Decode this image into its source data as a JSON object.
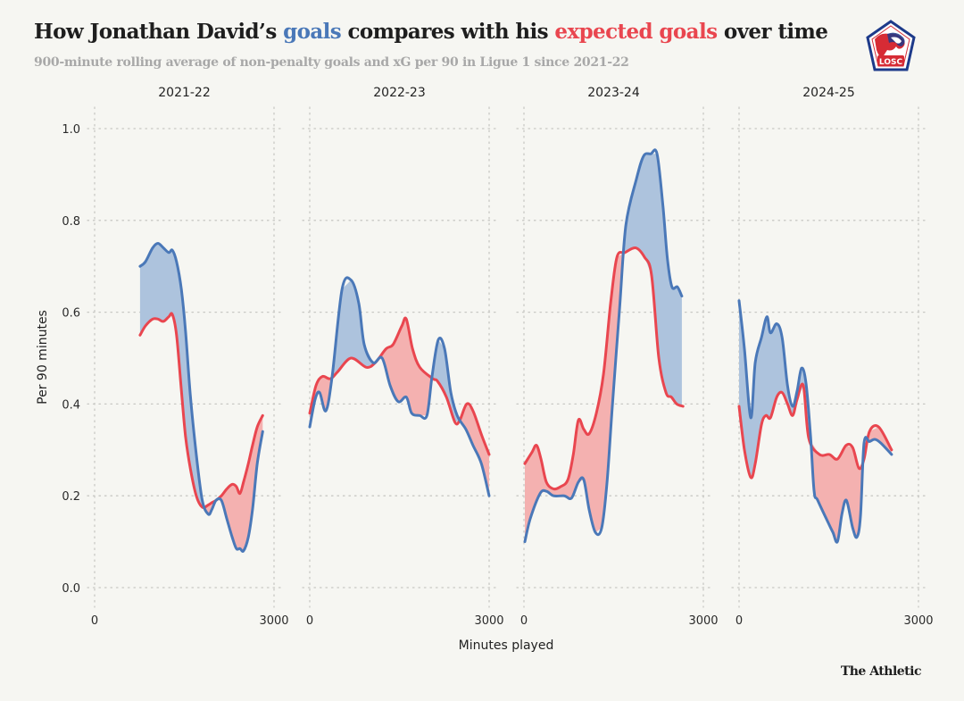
{
  "header": {
    "title_part1": "How Jonathan David’s ",
    "title_goals": "goals",
    "title_part2": " compares with his ",
    "title_xg": "expected goals",
    "title_part3": " over time",
    "subtitle": "900-minute rolling average of non-penalty goals and xG per 90 in Ligue 1 since 2021-22",
    "logo_text": "LOSC",
    "logo_icon": "losc-club-crest-icon"
  },
  "footer": {
    "brand": "The Athletic"
  },
  "colors": {
    "goals": "#4a78b8",
    "xg": "#e9464f",
    "goals_fill": "#adc3dd",
    "xg_fill": "#f4b1b0",
    "grid": "#c8c8c4",
    "background": "#f6f6f2"
  },
  "chart_data": {
    "type": "line",
    "title": "How Jonathan David’s goals compares with his expected goals over time",
    "subtitle": "900-minute rolling average of non-penalty goals and xG per 90 in Ligue 1 since 2021-22",
    "xlabel": "Minutes played",
    "ylabel": "Per 90 minutes",
    "ylim": [
      0,
      1.0
    ],
    "xlim": [
      0,
      3000
    ],
    "yticks": [
      0.0,
      0.2,
      0.4,
      0.6,
      0.8,
      1.0
    ],
    "ytick_labels": [
      "0.0",
      "0.2",
      "0.4",
      "0.6",
      "0.8",
      "1.0"
    ],
    "xticks": [
      0,
      3000
    ],
    "xtick_labels": [
      "0",
      "3000"
    ],
    "grid": true,
    "fill_between": "shaded area between goals and xG lines; blue where goals > xG, red where xG > goals",
    "legend": "inline-in-title",
    "series_names": [
      "Goals",
      "Expected goals (xG)"
    ],
    "panels": [
      {
        "season": "2021-22",
        "goals": {
          "x": [
            760,
            850,
            970,
            1060,
            1150,
            1240,
            1300,
            1370,
            1450,
            1520,
            1600,
            1700,
            1800,
            1900,
            1960,
            2030,
            2120,
            2210,
            2300,
            2370,
            2430,
            2490,
            2570,
            2640,
            2720,
            2810
          ],
          "y": [
            0.7,
            0.71,
            0.74,
            0.75,
            0.74,
            0.73,
            0.735,
            0.71,
            0.65,
            0.56,
            0.42,
            0.29,
            0.19,
            0.16,
            0.17,
            0.19,
            0.19,
            0.15,
            0.11,
            0.085,
            0.085,
            0.08,
            0.11,
            0.17,
            0.27,
            0.34
          ]
        },
        "xg": {
          "x": [
            760,
            850,
            970,
            1060,
            1150,
            1240,
            1300,
            1370,
            1450,
            1520,
            1600,
            1700,
            1800,
            1900,
            1960,
            2030,
            2120,
            2210,
            2300,
            2370,
            2430,
            2490,
            2570,
            2640,
            2720,
            2810
          ],
          "y": [
            0.55,
            0.57,
            0.585,
            0.585,
            0.58,
            0.59,
            0.595,
            0.55,
            0.43,
            0.33,
            0.26,
            0.2,
            0.175,
            0.18,
            0.185,
            0.19,
            0.2,
            0.215,
            0.225,
            0.22,
            0.205,
            0.23,
            0.27,
            0.31,
            0.35,
            0.375
          ]
        }
      },
      {
        "season": "2022-23",
        "goals": {
          "x": [
            0,
            90,
            165,
            270,
            375,
            540,
            690,
            820,
            910,
            1060,
            1210,
            1345,
            1480,
            1615,
            1705,
            1840,
            1960,
            2045,
            2150,
            2255,
            2360,
            2465,
            2610,
            2730,
            2870,
            3000
          ],
          "y": [
            0.35,
            0.41,
            0.425,
            0.385,
            0.46,
            0.65,
            0.67,
            0.62,
            0.53,
            0.49,
            0.5,
            0.44,
            0.405,
            0.415,
            0.38,
            0.375,
            0.375,
            0.46,
            0.54,
            0.52,
            0.425,
            0.375,
            0.345,
            0.31,
            0.27,
            0.2
          ]
        },
        "xg": {
          "x": [
            0,
            105,
            210,
            345,
            465,
            690,
            945,
            1095,
            1275,
            1395,
            1540,
            1615,
            1720,
            1840,
            2060,
            2135,
            2285,
            2430,
            2510,
            2625,
            2730,
            2880,
            3000
          ],
          "y": [
            0.38,
            0.44,
            0.46,
            0.455,
            0.47,
            0.5,
            0.48,
            0.49,
            0.52,
            0.53,
            0.57,
            0.585,
            0.52,
            0.48,
            0.455,
            0.45,
            0.415,
            0.36,
            0.365,
            0.4,
            0.385,
            0.33,
            0.29
          ]
        }
      },
      {
        "season": "2023-24",
        "goals": {
          "x": [
            15,
            105,
            270,
            375,
            495,
            675,
            795,
            910,
            1000,
            1090,
            1195,
            1300,
            1390,
            1480,
            1600,
            1705,
            1880,
            2000,
            2120,
            2225,
            2325,
            2400,
            2475,
            2565,
            2640
          ],
          "y": [
            0.1,
            0.15,
            0.205,
            0.21,
            0.2,
            0.2,
            0.195,
            0.23,
            0.235,
            0.17,
            0.12,
            0.13,
            0.23,
            0.4,
            0.61,
            0.79,
            0.89,
            0.94,
            0.945,
            0.945,
            0.83,
            0.715,
            0.655,
            0.655,
            0.635
          ]
        },
        "xg": {
          "x": [
            15,
            135,
            210,
            285,
            375,
            495,
            615,
            735,
            825,
            910,
            1000,
            1090,
            1210,
            1330,
            1450,
            1555,
            1690,
            1870,
            2015,
            2135,
            2255,
            2375,
            2465,
            2555,
            2660
          ],
          "y": [
            0.27,
            0.295,
            0.31,
            0.28,
            0.23,
            0.215,
            0.22,
            0.235,
            0.29,
            0.365,
            0.345,
            0.335,
            0.38,
            0.465,
            0.62,
            0.72,
            0.73,
            0.74,
            0.72,
            0.68,
            0.5,
            0.425,
            0.415,
            0.4,
            0.395
          ]
        }
      },
      {
        "season": "2024-25",
        "goals": {
          "x": [
            0,
            90,
            195,
            270,
            375,
            465,
            525,
            630,
            720,
            810,
            895,
            970,
            1045,
            1120,
            1195,
            1255,
            1315,
            1495,
            1570,
            1645,
            1720,
            1795,
            1900,
            1970,
            2030,
            2090,
            2180,
            2270,
            2370,
            2550
          ],
          "y": [
            0.625,
            0.52,
            0.37,
            0.49,
            0.545,
            0.59,
            0.555,
            0.575,
            0.545,
            0.44,
            0.395,
            0.428,
            0.478,
            0.445,
            0.33,
            0.21,
            0.19,
            0.14,
            0.12,
            0.1,
            0.16,
            0.19,
            0.13,
            0.11,
            0.155,
            0.315,
            0.318,
            0.323,
            0.315,
            0.29
          ]
        },
        "xg": {
          "x": [
            0,
            90,
            195,
            270,
            375,
            450,
            525,
            630,
            720,
            810,
            895,
            970,
            1075,
            1165,
            1345,
            1510,
            1645,
            1790,
            1900,
            2005,
            2090,
            2180,
            2335,
            2550
          ],
          "y": [
            0.395,
            0.3,
            0.24,
            0.27,
            0.355,
            0.375,
            0.37,
            0.415,
            0.425,
            0.4,
            0.375,
            0.41,
            0.44,
            0.325,
            0.29,
            0.29,
            0.28,
            0.31,
            0.305,
            0.26,
            0.28,
            0.34,
            0.35,
            0.3
          ]
        }
      }
    ]
  }
}
